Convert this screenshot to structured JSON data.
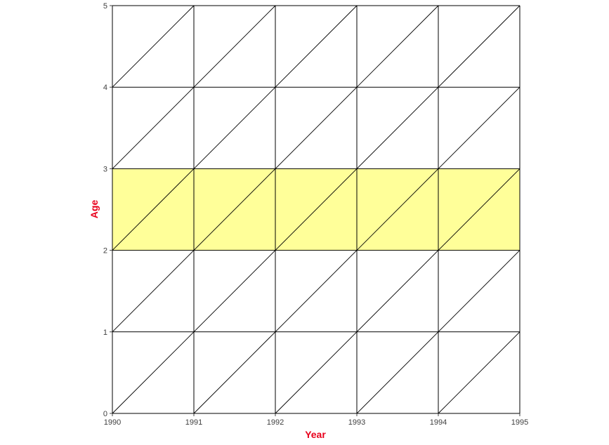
{
  "chart_data": {
    "type": "lexis",
    "xlabel": "Year",
    "ylabel": "Age",
    "xlim": [
      1990,
      1995
    ],
    "ylim": [
      0,
      5
    ],
    "x_ticks": [
      1990,
      1991,
      1992,
      1993,
      1994,
      1995
    ],
    "y_ticks": [
      0,
      1,
      2,
      3,
      4,
      5
    ],
    "grid": true,
    "diagonals": "cohort lines through each integer (year, age) cell",
    "highlight": {
      "age_from": 2,
      "age_to": 3,
      "year_from": 1990,
      "year_to": 1995,
      "color": "#ffff99"
    },
    "colors": {
      "axis_title": "#e8001c",
      "grid": "#000000",
      "tick_label": "#404040",
      "highlight": "#ffff99"
    }
  }
}
